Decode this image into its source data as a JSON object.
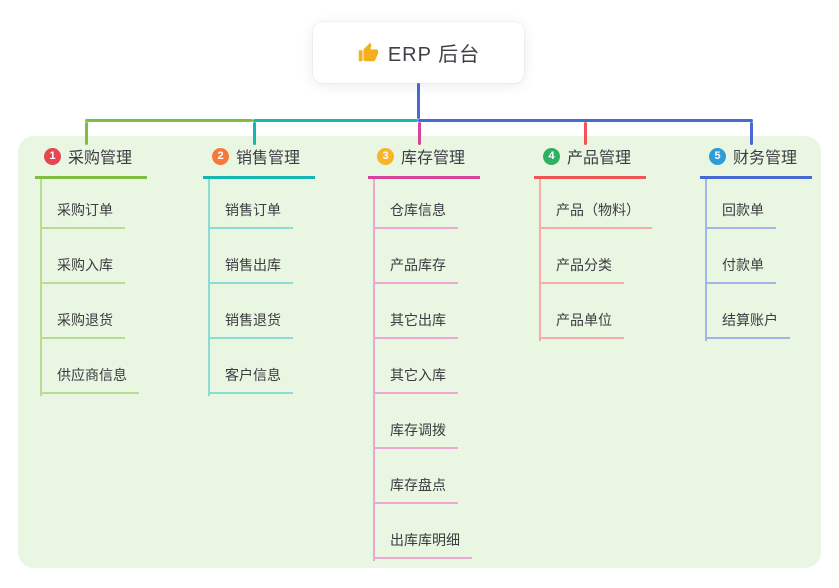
{
  "root": {
    "label": "ERP 后台",
    "icon": "thumbs-up-icon",
    "icon_color": "#f2b01e"
  },
  "colors": {
    "canvas_bg": "#ffffff",
    "panel_bg": "#e9f6e2",
    "root_line": "#4a68d2",
    "text_dark": "#3c3c42"
  },
  "branches": [
    {
      "badge": "1",
      "badge_color": "#e64552",
      "line_color": "#7fbe3f",
      "child_line_color": "#b8dc92",
      "label": "采购管理",
      "children": [
        "采购订单",
        "采购入库",
        "采购退货",
        "供应商信息"
      ]
    },
    {
      "badge": "2",
      "badge_color": "#f57a3a",
      "line_color": "#14b8b1",
      "child_line_color": "#8cdcd6",
      "label": "销售管理",
      "children": [
        "销售订单",
        "销售出库",
        "销售退货",
        "客户信息"
      ]
    },
    {
      "badge": "3",
      "badge_color": "#f7b52b",
      "line_color": "#d6459c",
      "child_line_color": "#efa6d0",
      "label": "库存管理",
      "children": [
        "仓库信息",
        "产品库存",
        "其它出库",
        "其它入库",
        "库存调拨",
        "库存盘点",
        "出库库明细"
      ]
    },
    {
      "badge": "4",
      "badge_color": "#30b065",
      "line_color": "#f05455",
      "child_line_color": "#f8abaa",
      "label": "产品管理",
      "children": [
        "产品（物料）",
        "产品分类",
        "产品单位"
      ]
    },
    {
      "badge": "5",
      "badge_color": "#2e9cd9",
      "line_color": "#4a68d2",
      "child_line_color": "#a3b4ea",
      "label": "财务管理",
      "children": [
        "回款单",
        "付款单",
        "结算账户"
      ]
    }
  ]
}
